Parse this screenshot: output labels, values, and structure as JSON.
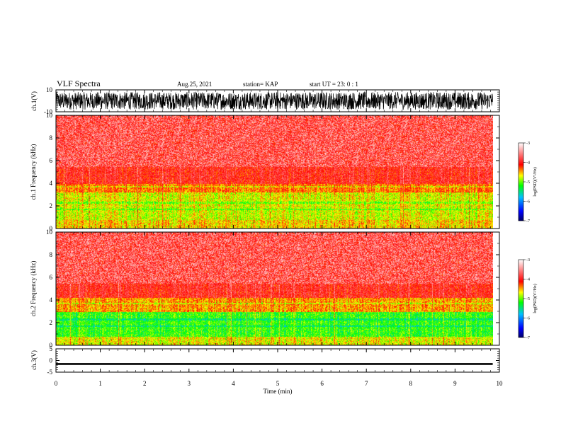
{
  "header": {
    "title": "VLF Spectra",
    "date": "Aug.25, 2021",
    "station": "station= KAP",
    "start_ut": "start  UT  =   23: 0  : 1"
  },
  "colors": {
    "background": "#ffffff",
    "colormap": [
      "#000066",
      "#0000ff",
      "#00c0ff",
      "#00ff00",
      "#ffff00",
      "#ff0000",
      "#ffffff"
    ]
  },
  "chart_data": [
    {
      "type": "line",
      "name": "ch1-waveform",
      "ylabel": "ch.1(V)",
      "ylim": [
        -10,
        10
      ],
      "yticks": [
        "10",
        "-10"
      ],
      "description_of_shape": "dense noisy waveform spanning full range",
      "amplitude_range": [
        -8,
        8
      ]
    },
    {
      "type": "heatmap",
      "name": "ch1-spectrogram",
      "ylabel": "ch.1 Frequency (kHz)",
      "ylim": [
        0,
        10
      ],
      "yticks": [
        "0",
        "2",
        "4",
        "6",
        "8",
        "10"
      ],
      "bands_khz": [
        {
          "from": 0,
          "to": 0.8,
          "level": 0.55
        },
        {
          "from": 0.8,
          "to": 2.0,
          "level": 0.62
        },
        {
          "from": 2.0,
          "to": 3.2,
          "level": 0.6
        },
        {
          "from": 3.2,
          "to": 4.0,
          "level": 0.45
        },
        {
          "from": 4.0,
          "to": 5.5,
          "level": 0.3
        },
        {
          "from": 5.5,
          "to": 10,
          "level": 0.12
        }
      ],
      "colorbar": {
        "label": "log(PSD)(V²/Hz)",
        "ticks": [
          "-3",
          "-4",
          "-5",
          "-6",
          "-7"
        ],
        "range": [
          -7,
          -3
        ]
      }
    },
    {
      "type": "heatmap",
      "name": "ch2-spectrogram",
      "ylabel": "ch.2 Frequency (kHz)",
      "ylim": [
        0,
        10
      ],
      "yticks": [
        "0",
        "2",
        "4",
        "6",
        "8",
        "10"
      ],
      "bands_khz": [
        {
          "from": 0,
          "to": 0.8,
          "level": 0.6
        },
        {
          "from": 0.8,
          "to": 3.0,
          "level": 0.78
        },
        {
          "from": 3.0,
          "to": 4.2,
          "level": 0.5
        },
        {
          "from": 4.2,
          "to": 5.5,
          "level": 0.3
        },
        {
          "from": 5.5,
          "to": 10,
          "level": 0.12
        }
      ],
      "colorbar": {
        "label": "log(PSD)(V²/Hz)",
        "ticks": [
          "-3",
          "-4",
          "-5",
          "-6",
          "-7"
        ],
        "range": [
          -7,
          -3
        ]
      }
    },
    {
      "type": "line",
      "name": "ch3-waveform",
      "ylabel": "ch.3(V)",
      "ylim": [
        -5,
        5
      ],
      "yticks": [
        "5",
        "0",
        "-5"
      ],
      "baseline": -1.5,
      "amplitude_range": [
        -0.4,
        0.4
      ]
    }
  ],
  "xaxis": {
    "label": "Time (min)",
    "xlim": [
      0,
      10
    ],
    "data_end": 9.85,
    "ticks": [
      "0",
      "1",
      "2",
      "3",
      "4",
      "5",
      "6",
      "7",
      "8",
      "9",
      "10"
    ]
  }
}
